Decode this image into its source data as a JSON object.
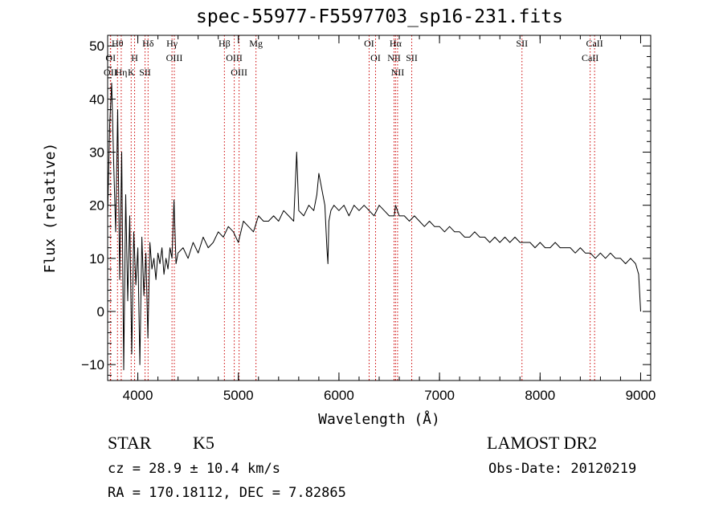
{
  "header": {
    "title": "spec-55977-F5597703_sp16-231.fits"
  },
  "info": {
    "class": "STAR",
    "subclass": "K5",
    "survey": "LAMOST DR2",
    "cz": "cz = 28.9 ± 10.4 km/s",
    "obs_date": "Obs-Date: 20120219",
    "radec": "RA = 170.18112, DEC =    7.82865"
  },
  "chart_data": {
    "type": "line",
    "title": "spec-55977-F5597703_sp16-231.fits",
    "xlabel": "Wavelength (Å)",
    "ylabel": "Flux (relative)",
    "xlim": [
      3700,
      9100
    ],
    "ylim": [
      -13,
      52
    ],
    "x_ticks": [
      4000,
      5000,
      6000,
      7000,
      8000,
      9000
    ],
    "y_ticks": [
      -10,
      0,
      10,
      20,
      30,
      40,
      50
    ],
    "grid": false,
    "line_color": "#000000",
    "marker_color": "#cc0000",
    "series": [
      {
        "x": [
          3700,
          3720,
          3740,
          3760,
          3780,
          3800,
          3820,
          3840,
          3860,
          3880,
          3900,
          3920,
          3940,
          3960,
          3980,
          4000,
          4020,
          4040,
          4060,
          4080,
          4100,
          4120,
          4140,
          4160,
          4180,
          4200,
          4220,
          4240,
          4260,
          4280,
          4300,
          4320,
          4340,
          4360,
          4380,
          4400,
          4450,
          4500,
          4550,
          4600,
          4650,
          4700,
          4750,
          4800,
          4850,
          4900,
          4950,
          5000,
          5050,
          5100,
          5150,
          5200,
          5250,
          5300,
          5350,
          5400,
          5450,
          5500,
          5550,
          5580,
          5600,
          5650,
          5700,
          5750,
          5780,
          5800,
          5820,
          5840,
          5860,
          5880,
          5890,
          5900,
          5920,
          5950,
          6000,
          6050,
          6100,
          6150,
          6200,
          6250,
          6300,
          6350,
          6400,
          6450,
          6500,
          6550,
          6563,
          6600,
          6650,
          6700,
          6750,
          6800,
          6850,
          6900,
          6950,
          7000,
          7050,
          7100,
          7150,
          7200,
          7250,
          7300,
          7350,
          7400,
          7450,
          7500,
          7550,
          7600,
          7650,
          7700,
          7750,
          7800,
          7850,
          7900,
          7950,
          8000,
          8050,
          8100,
          8150,
          8200,
          8250,
          8300,
          8350,
          8400,
          8450,
          8500,
          8550,
          8600,
          8650,
          8700,
          8750,
          8800,
          8850,
          8900,
          8950,
          8980,
          9000
        ],
        "y": [
          18,
          35,
          43,
          28,
          15,
          38,
          6,
          30,
          -11,
          22,
          2,
          18,
          -8,
          15,
          5,
          12,
          -10,
          14,
          3,
          11,
          -5,
          13,
          8,
          10,
          6,
          11,
          9,
          12,
          7,
          10,
          8,
          12,
          10,
          21,
          9,
          11,
          12,
          10,
          13,
          11,
          14,
          12,
          13,
          15,
          14,
          16,
          15,
          13,
          17,
          16,
          15,
          18,
          17,
          17,
          18,
          17,
          19,
          18,
          17,
          30,
          19,
          18,
          20,
          19,
          22,
          26,
          24,
          22,
          20,
          12,
          9,
          17,
          19,
          20,
          19,
          20,
          18,
          20,
          19,
          20,
          19,
          18,
          20,
          19,
          18,
          18,
          20,
          18,
          18,
          17,
          18,
          17,
          16,
          17,
          16,
          16,
          15,
          16,
          15,
          15,
          14,
          14,
          15,
          14,
          14,
          13,
          14,
          13,
          14,
          13,
          14,
          13,
          13,
          13,
          12,
          13,
          12,
          12,
          13,
          12,
          12,
          12,
          11,
          12,
          11,
          11,
          10,
          11,
          10,
          11,
          10,
          10,
          9,
          10,
          9,
          7,
          0
        ]
      }
    ],
    "line_markers": [
      {
        "label": "Hθ",
        "x": 3798
      },
      {
        "label": "OI",
        "x": 3730
      },
      {
        "label": "OII",
        "x": 3727
      },
      {
        "label": "Hη",
        "x": 3835
      },
      {
        "label": "H",
        "x": 3968
      },
      {
        "label": "K",
        "x": 3934
      },
      {
        "label": "Hδ",
        "x": 4102
      },
      {
        "label": "SII",
        "x": 4072
      },
      {
        "label": "Hγ",
        "x": 4340
      },
      {
        "label": "OIII",
        "x": 4363
      },
      {
        "label": "Hβ",
        "x": 4861
      },
      {
        "label": "OIII",
        "x": 4959
      },
      {
        "label": "OIII",
        "x": 5007
      },
      {
        "label": "Mg",
        "x": 5175
      },
      {
        "label": "OI",
        "x": 6300
      },
      {
        "label": "OI",
        "x": 6364
      },
      {
        "label": "Hα",
        "x": 6563
      },
      {
        "label": "NII",
        "x": 6548
      },
      {
        "label": "NII",
        "x": 6583
      },
      {
        "label": "SII",
        "x": 6724
      },
      {
        "label": "SII",
        "x": 7820
      },
      {
        "label": "CaII",
        "x": 8542
      },
      {
        "label": "CaII",
        "x": 8498
      }
    ]
  }
}
